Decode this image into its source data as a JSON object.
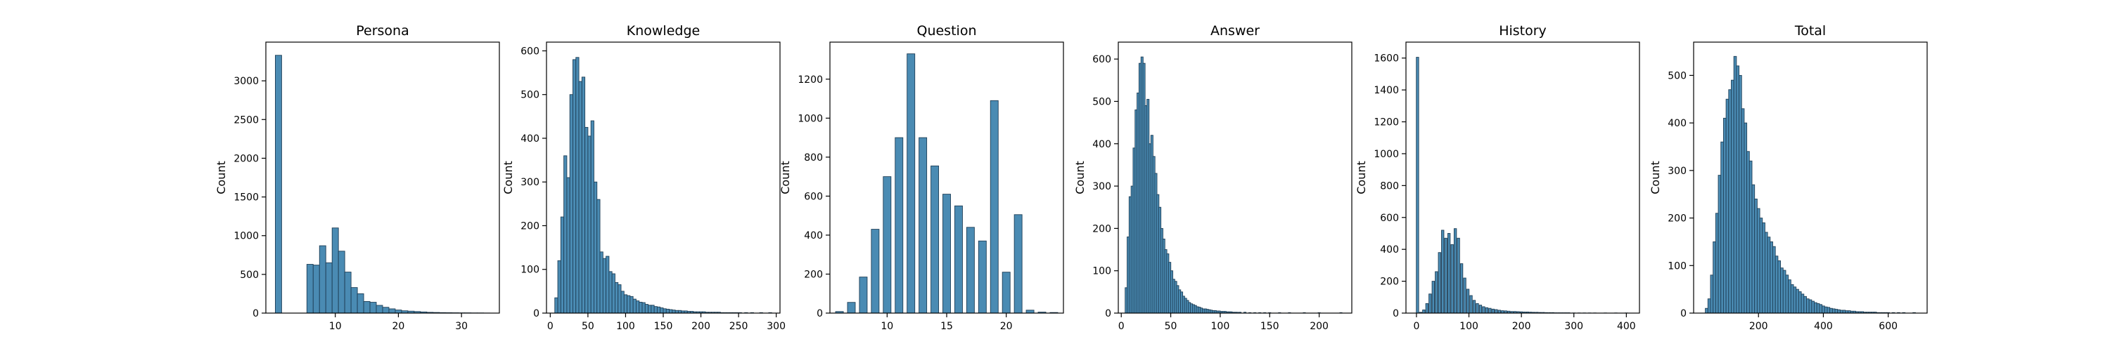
{
  "chart_data": [
    {
      "type": "bar",
      "title": "Persona",
      "ylabel": "Count",
      "xlim": [
        -1,
        36
      ],
      "ylim": [
        0,
        3500
      ],
      "xticks": [
        10,
        20,
        30
      ],
      "yticks": [
        0,
        500,
        1000,
        1500,
        2000,
        2500,
        3000
      ],
      "bin_width": 1,
      "bins": [
        [
          1,
          3330
        ],
        [
          6,
          630
        ],
        [
          7,
          620
        ],
        [
          8,
          870
        ],
        [
          9,
          650
        ],
        [
          10,
          1100
        ],
        [
          11,
          800
        ],
        [
          12,
          530
        ],
        [
          13,
          330
        ],
        [
          14,
          250
        ],
        [
          15,
          150
        ],
        [
          16,
          140
        ],
        [
          17,
          100
        ],
        [
          18,
          75
        ],
        [
          19,
          55
        ],
        [
          20,
          40
        ],
        [
          21,
          30
        ],
        [
          22,
          25
        ],
        [
          23,
          20
        ],
        [
          24,
          15
        ],
        [
          25,
          10
        ],
        [
          26,
          8
        ],
        [
          27,
          6
        ],
        [
          28,
          5
        ],
        [
          29,
          4
        ],
        [
          30,
          3
        ],
        [
          31,
          3
        ],
        [
          32,
          2
        ],
        [
          33,
          2
        ],
        [
          34,
          1
        ]
      ]
    },
    {
      "type": "bar",
      "title": "Knowledge",
      "ylabel": "Count",
      "xlim": [
        -5,
        305
      ],
      "ylim": [
        0,
        620
      ],
      "xticks": [
        0,
        50,
        100,
        150,
        200,
        250,
        300
      ],
      "yticks": [
        0,
        100,
        200,
        300,
        400,
        500,
        600
      ],
      "bin_width": 4,
      "bins": [
        [
          8,
          35
        ],
        [
          12,
          120
        ],
        [
          16,
          220
        ],
        [
          20,
          360
        ],
        [
          24,
          310
        ],
        [
          28,
          500
        ],
        [
          32,
          580
        ],
        [
          36,
          585
        ],
        [
          40,
          530
        ],
        [
          44,
          540
        ],
        [
          48,
          425
        ],
        [
          52,
          405
        ],
        [
          56,
          440
        ],
        [
          60,
          300
        ],
        [
          64,
          260
        ],
        [
          68,
          140
        ],
        [
          72,
          125
        ],
        [
          76,
          130
        ],
        [
          80,
          95
        ],
        [
          84,
          90
        ],
        [
          88,
          70
        ],
        [
          92,
          65
        ],
        [
          96,
          50
        ],
        [
          100,
          42
        ],
        [
          104,
          40
        ],
        [
          108,
          38
        ],
        [
          112,
          32
        ],
        [
          116,
          28
        ],
        [
          120,
          25
        ],
        [
          124,
          24
        ],
        [
          128,
          20
        ],
        [
          132,
          18
        ],
        [
          136,
          18
        ],
        [
          140,
          15
        ],
        [
          144,
          14
        ],
        [
          148,
          12
        ],
        [
          152,
          10
        ],
        [
          156,
          9
        ],
        [
          160,
          8
        ],
        [
          164,
          7
        ],
        [
          168,
          6
        ],
        [
          172,
          6
        ],
        [
          176,
          5
        ],
        [
          180,
          5
        ],
        [
          184,
          4
        ],
        [
          188,
          4
        ],
        [
          192,
          3
        ],
        [
          196,
          3
        ],
        [
          200,
          3
        ],
        [
          204,
          3
        ],
        [
          208,
          2
        ],
        [
          212,
          2
        ],
        [
          216,
          2
        ],
        [
          220,
          2
        ],
        [
          224,
          2
        ],
        [
          228,
          1
        ],
        [
          232,
          1
        ],
        [
          236,
          1
        ],
        [
          240,
          1
        ],
        [
          244,
          1
        ],
        [
          248,
          1
        ],
        [
          252,
          1
        ],
        [
          260,
          1
        ],
        [
          268,
          1
        ],
        [
          280,
          1
        ],
        [
          292,
          1
        ]
      ]
    },
    {
      "type": "bar",
      "title": "Question",
      "ylabel": "Count",
      "xlim": [
        5.2,
        24.8
      ],
      "ylim": [
        0,
        1390
      ],
      "xticks": [
        10,
        15,
        20
      ],
      "yticks": [
        0,
        200,
        400,
        600,
        800,
        1000,
        1200
      ],
      "bin_width": 0.65,
      "bins": [
        [
          6,
          8
        ],
        [
          7,
          55
        ],
        [
          8,
          185
        ],
        [
          9,
          430
        ],
        [
          10,
          700
        ],
        [
          11,
          900
        ],
        [
          12,
          1330
        ],
        [
          13,
          900
        ],
        [
          14,
          755
        ],
        [
          15,
          610
        ],
        [
          16,
          550
        ],
        [
          17,
          440
        ],
        [
          18,
          370
        ],
        [
          19,
          1090
        ],
        [
          20,
          210
        ],
        [
          21,
          505
        ],
        [
          22,
          15
        ],
        [
          23,
          5
        ],
        [
          24,
          3
        ]
      ]
    },
    {
      "type": "bar",
      "title": "Answer",
      "ylabel": "Count",
      "xlim": [
        -3,
        233
      ],
      "ylim": [
        0,
        640
      ],
      "xticks": [
        0,
        50,
        100,
        150,
        200
      ],
      "yticks": [
        0,
        100,
        200,
        300,
        400,
        500,
        600
      ],
      "bin_width": 2.2,
      "bins": [
        [
          5,
          60
        ],
        [
          7,
          180
        ],
        [
          9,
          275
        ],
        [
          11,
          300
        ],
        [
          13,
          390
        ],
        [
          15,
          480
        ],
        [
          17,
          520
        ],
        [
          19,
          590
        ],
        [
          21,
          605
        ],
        [
          23,
          590
        ],
        [
          25,
          490
        ],
        [
          27,
          505
        ],
        [
          29,
          400
        ],
        [
          31,
          420
        ],
        [
          33,
          370
        ],
        [
          35,
          330
        ],
        [
          37,
          280
        ],
        [
          39,
          250
        ],
        [
          41,
          200
        ],
        [
          43,
          175
        ],
        [
          45,
          150
        ],
        [
          47,
          140
        ],
        [
          49,
          120
        ],
        [
          51,
          100
        ],
        [
          53,
          80
        ],
        [
          55,
          75
        ],
        [
          57,
          65
        ],
        [
          59,
          55
        ],
        [
          61,
          50
        ],
        [
          63,
          40
        ],
        [
          65,
          35
        ],
        [
          67,
          30
        ],
        [
          69,
          25
        ],
        [
          71,
          22
        ],
        [
          73,
          20
        ],
        [
          75,
          18
        ],
        [
          77,
          15
        ],
        [
          79,
          14
        ],
        [
          81,
          12
        ],
        [
          83,
          10
        ],
        [
          85,
          10
        ],
        [
          87,
          9
        ],
        [
          89,
          8
        ],
        [
          91,
          7
        ],
        [
          93,
          6
        ],
        [
          95,
          6
        ],
        [
          97,
          5
        ],
        [
          99,
          5
        ],
        [
          101,
          4
        ],
        [
          103,
          4
        ],
        [
          105,
          4
        ],
        [
          107,
          3
        ],
        [
          109,
          3
        ],
        [
          111,
          3
        ],
        [
          113,
          2
        ],
        [
          115,
          2
        ],
        [
          117,
          2
        ],
        [
          120,
          2
        ],
        [
          125,
          2
        ],
        [
          130,
          1
        ],
        [
          135,
          1
        ],
        [
          140,
          1
        ],
        [
          145,
          1
        ],
        [
          150,
          1
        ],
        [
          160,
          1
        ],
        [
          170,
          1
        ],
        [
          185,
          1
        ],
        [
          200,
          1
        ],
        [
          222,
          1
        ]
      ]
    },
    {
      "type": "bar",
      "title": "History",
      "ylabel": "Count",
      "xlim": [
        -20,
        425
      ],
      "ylim": [
        0,
        1700
      ],
      "xticks": [
        0,
        100,
        200,
        300,
        400
      ],
      "yticks": [
        0,
        200,
        400,
        600,
        800,
        1000,
        1200,
        1400,
        1600
      ],
      "bin_width": 4.6,
      "bins": [
        [
          2,
          1605
        ],
        [
          8,
          5
        ],
        [
          14,
          20
        ],
        [
          20,
          60
        ],
        [
          26,
          120
        ],
        [
          32,
          200
        ],
        [
          38,
          260
        ],
        [
          44,
          380
        ],
        [
          50,
          520
        ],
        [
          56,
          470
        ],
        [
          62,
          500
        ],
        [
          68,
          430
        ],
        [
          74,
          530
        ],
        [
          80,
          470
        ],
        [
          86,
          310
        ],
        [
          92,
          220
        ],
        [
          98,
          150
        ],
        [
          104,
          110
        ],
        [
          110,
          80
        ],
        [
          116,
          60
        ],
        [
          122,
          50
        ],
        [
          128,
          40
        ],
        [
          134,
          34
        ],
        [
          140,
          30
        ],
        [
          146,
          25
        ],
        [
          152,
          22
        ],
        [
          158,
          18
        ],
        [
          164,
          15
        ],
        [
          170,
          14
        ],
        [
          176,
          12
        ],
        [
          182,
          10
        ],
        [
          188,
          10
        ],
        [
          194,
          9
        ],
        [
          200,
          8
        ],
        [
          206,
          7
        ],
        [
          212,
          7
        ],
        [
          218,
          6
        ],
        [
          224,
          5
        ],
        [
          230,
          5
        ],
        [
          236,
          4
        ],
        [
          242,
          4
        ],
        [
          248,
          3
        ],
        [
          254,
          3
        ],
        [
          260,
          3
        ],
        [
          266,
          2
        ],
        [
          272,
          2
        ],
        [
          278,
          2
        ],
        [
          284,
          2
        ],
        [
          290,
          2
        ],
        [
          300,
          1
        ],
        [
          310,
          1
        ],
        [
          320,
          1
        ],
        [
          330,
          1
        ],
        [
          340,
          1
        ],
        [
          360,
          1
        ],
        [
          380,
          1
        ],
        [
          400,
          1
        ]
      ]
    },
    {
      "type": "bar",
      "title": "Total",
      "ylabel": "Count",
      "xlim": [
        0,
        720
      ],
      "ylim": [
        0,
        570
      ],
      "xticks": [
        200,
        400,
        600
      ],
      "yticks": [
        0,
        100,
        200,
        300,
        400,
        500
      ],
      "bin_width": 8,
      "bins": [
        [
          40,
          10
        ],
        [
          48,
          30
        ],
        [
          56,
          80
        ],
        [
          64,
          150
        ],
        [
          72,
          210
        ],
        [
          80,
          290
        ],
        [
          88,
          360
        ],
        [
          96,
          410
        ],
        [
          104,
          450
        ],
        [
          112,
          470
        ],
        [
          120,
          490
        ],
        [
          128,
          540
        ],
        [
          136,
          520
        ],
        [
          144,
          500
        ],
        [
          152,
          430
        ],
        [
          160,
          400
        ],
        [
          168,
          340
        ],
        [
          176,
          320
        ],
        [
          184,
          270
        ],
        [
          192,
          240
        ],
        [
          200,
          220
        ],
        [
          208,
          200
        ],
        [
          216,
          190
        ],
        [
          224,
          170
        ],
        [
          232,
          160
        ],
        [
          240,
          150
        ],
        [
          248,
          140
        ],
        [
          256,
          120
        ],
        [
          264,
          110
        ],
        [
          272,
          95
        ],
        [
          280,
          90
        ],
        [
          288,
          80
        ],
        [
          296,
          70
        ],
        [
          304,
          60
        ],
        [
          312,
          55
        ],
        [
          320,
          50
        ],
        [
          328,
          45
        ],
        [
          336,
          40
        ],
        [
          344,
          35
        ],
        [
          352,
          30
        ],
        [
          360,
          28
        ],
        [
          368,
          25
        ],
        [
          376,
          22
        ],
        [
          384,
          20
        ],
        [
          392,
          18
        ],
        [
          400,
          15
        ],
        [
          408,
          13
        ],
        [
          416,
          12
        ],
        [
          424,
          10
        ],
        [
          432,
          9
        ],
        [
          440,
          8
        ],
        [
          448,
          7
        ],
        [
          456,
          6
        ],
        [
          464,
          6
        ],
        [
          472,
          5
        ],
        [
          480,
          5
        ],
        [
          488,
          4
        ],
        [
          496,
          4
        ],
        [
          504,
          3
        ],
        [
          512,
          3
        ],
        [
          520,
          3
        ],
        [
          528,
          2
        ],
        [
          536,
          2
        ],
        [
          544,
          2
        ],
        [
          552,
          2
        ],
        [
          560,
          2
        ],
        [
          568,
          1
        ],
        [
          576,
          1
        ],
        [
          584,
          1
        ],
        [
          592,
          1
        ],
        [
          600,
          1
        ],
        [
          616,
          1
        ],
        [
          632,
          1
        ],
        [
          648,
          1
        ],
        [
          680,
          1
        ]
      ]
    }
  ]
}
